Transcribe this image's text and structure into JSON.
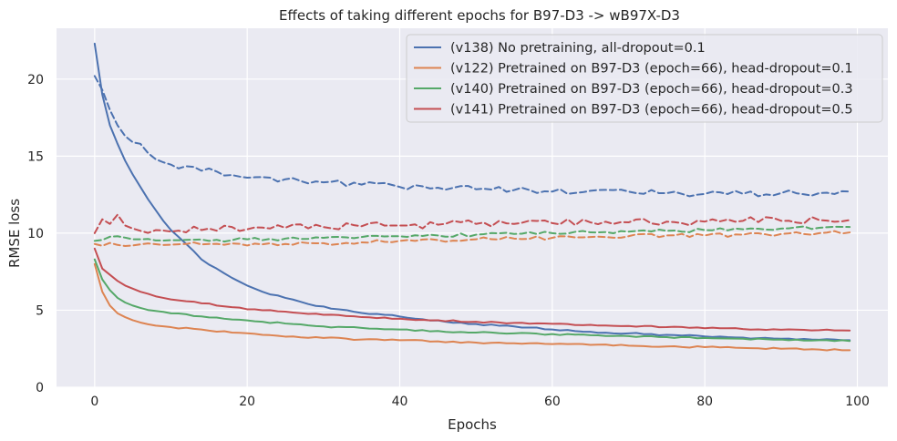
{
  "chart_data": {
    "type": "line",
    "title": "Effects of taking different epochs for B97-D3 -> wB97X-D3",
    "xlabel": "Epochs",
    "ylabel": "RMSE loss",
    "xlim": [
      -5,
      104
    ],
    "ylim": [
      0,
      23.3
    ],
    "xticks": [
      0,
      20,
      40,
      60,
      80,
      100
    ],
    "yticks": [
      0,
      5,
      10,
      15,
      20
    ],
    "grid": true,
    "legend_position": "top-right",
    "series": [
      {
        "name": "(v138) No pretraining, all-dropout=0.1",
        "color": "#4c72b0",
        "train_anchors": [
          [
            0,
            22.3
          ],
          [
            1,
            19
          ],
          [
            2,
            17
          ],
          [
            3,
            15.8
          ],
          [
            4,
            14.7
          ],
          [
            5,
            13.8
          ],
          [
            6,
            13
          ],
          [
            7,
            12.2
          ],
          [
            8,
            11.5
          ],
          [
            9,
            10.8
          ],
          [
            10,
            10.2
          ],
          [
            12,
            9.3
          ],
          [
            14,
            8.3
          ],
          [
            16,
            7.7
          ],
          [
            18,
            7.1
          ],
          [
            20,
            6.6
          ],
          [
            22,
            6.2
          ],
          [
            25,
            5.8
          ],
          [
            28,
            5.4
          ],
          [
            31,
            5.1
          ],
          [
            34,
            4.9
          ],
          [
            38,
            4.7
          ],
          [
            42,
            4.45
          ],
          [
            46,
            4.25
          ],
          [
            50,
            4.1
          ],
          [
            55,
            3.95
          ],
          [
            60,
            3.75
          ],
          [
            65,
            3.6
          ],
          [
            70,
            3.5
          ],
          [
            75,
            3.4
          ],
          [
            80,
            3.3
          ],
          [
            85,
            3.22
          ],
          [
            90,
            3.15
          ],
          [
            95,
            3.08
          ],
          [
            99,
            3.05
          ]
        ],
        "train_noise": 0.05,
        "val_anchors": [
          [
            0,
            20.2
          ],
          [
            1,
            19.3
          ],
          [
            2,
            18
          ],
          [
            3,
            17
          ],
          [
            4,
            16.3
          ],
          [
            5,
            15.9
          ],
          [
            6,
            15.8
          ],
          [
            7,
            15.2
          ],
          [
            8,
            14.8
          ],
          [
            9,
            14.6
          ],
          [
            10,
            14.45
          ],
          [
            13,
            14.3
          ],
          [
            16,
            14
          ],
          [
            20,
            13.6
          ],
          [
            25,
            13.5
          ],
          [
            30,
            13.3
          ],
          [
            35,
            13.15
          ],
          [
            40,
            13
          ],
          [
            45,
            12.95
          ],
          [
            50,
            12.85
          ],
          [
            55,
            12.8
          ],
          [
            60,
            12.7
          ],
          [
            65,
            12.75
          ],
          [
            70,
            12.7
          ],
          [
            75,
            12.6
          ],
          [
            80,
            12.55
          ],
          [
            85,
            12.55
          ],
          [
            90,
            12.6
          ],
          [
            95,
            12.6
          ],
          [
            99,
            12.7
          ]
        ],
        "val_noise": 0.2
      },
      {
        "name": "(v122) Pretrained on B97-D3 (epoch=66), head-dropout=0.1",
        "color": "#dd8452",
        "train_anchors": [
          [
            0,
            8
          ],
          [
            1,
            6.2
          ],
          [
            2,
            5.3
          ],
          [
            3,
            4.8
          ],
          [
            4,
            4.55
          ],
          [
            5,
            4.35
          ],
          [
            6,
            4.2
          ],
          [
            8,
            4
          ],
          [
            10,
            3.9
          ],
          [
            14,
            3.75
          ],
          [
            18,
            3.55
          ],
          [
            22,
            3.4
          ],
          [
            26,
            3.3
          ],
          [
            30,
            3.2
          ],
          [
            35,
            3.1
          ],
          [
            40,
            3.05
          ],
          [
            45,
            2.98
          ],
          [
            50,
            2.9
          ],
          [
            55,
            2.85
          ],
          [
            60,
            2.8
          ],
          [
            65,
            2.75
          ],
          [
            70,
            2.7
          ],
          [
            75,
            2.65
          ],
          [
            80,
            2.6
          ],
          [
            85,
            2.55
          ],
          [
            90,
            2.5
          ],
          [
            95,
            2.45
          ],
          [
            99,
            2.4
          ]
        ],
        "train_noise": 0.05,
        "val_anchors": [
          [
            0,
            9.3
          ],
          [
            5,
            9.2
          ],
          [
            10,
            9.25
          ],
          [
            15,
            9.3
          ],
          [
            20,
            9.2
          ],
          [
            25,
            9.3
          ],
          [
            30,
            9.35
          ],
          [
            35,
            9.4
          ],
          [
            40,
            9.5
          ],
          [
            45,
            9.55
          ],
          [
            50,
            9.6
          ],
          [
            55,
            9.65
          ],
          [
            60,
            9.7
          ],
          [
            65,
            9.75
          ],
          [
            70,
            9.8
          ],
          [
            75,
            9.85
          ],
          [
            80,
            9.85
          ],
          [
            85,
            9.9
          ],
          [
            90,
            9.95
          ],
          [
            95,
            10
          ],
          [
            99,
            10.05
          ]
        ],
        "val_noise": 0.12
      },
      {
        "name": "(v140) Pretrained on B97-D3 (epoch=66), head-dropout=0.3",
        "color": "#55a868",
        "train_anchors": [
          [
            0,
            8.3
          ],
          [
            1,
            7
          ],
          [
            2,
            6.3
          ],
          [
            3,
            5.8
          ],
          [
            4,
            5.5
          ],
          [
            5,
            5.3
          ],
          [
            6,
            5.15
          ],
          [
            8,
            4.95
          ],
          [
            10,
            4.8
          ],
          [
            14,
            4.6
          ],
          [
            18,
            4.4
          ],
          [
            22,
            4.25
          ],
          [
            26,
            4.1
          ],
          [
            30,
            3.95
          ],
          [
            35,
            3.85
          ],
          [
            40,
            3.75
          ],
          [
            45,
            3.65
          ],
          [
            50,
            3.55
          ],
          [
            55,
            3.5
          ],
          [
            60,
            3.45
          ],
          [
            65,
            3.38
          ],
          [
            70,
            3.32
          ],
          [
            75,
            3.25
          ],
          [
            80,
            3.2
          ],
          [
            85,
            3.15
          ],
          [
            90,
            3.1
          ],
          [
            95,
            3.05
          ],
          [
            99,
            3
          ]
        ],
        "train_noise": 0.05,
        "val_anchors": [
          [
            0,
            9.5
          ],
          [
            3,
            9.8
          ],
          [
            5,
            9.6
          ],
          [
            10,
            9.55
          ],
          [
            15,
            9.5
          ],
          [
            20,
            9.6
          ],
          [
            25,
            9.65
          ],
          [
            30,
            9.7
          ],
          [
            35,
            9.75
          ],
          [
            40,
            9.8
          ],
          [
            45,
            9.85
          ],
          [
            50,
            9.9
          ],
          [
            55,
            9.95
          ],
          [
            60,
            10
          ],
          [
            65,
            10.05
          ],
          [
            70,
            10.1
          ],
          [
            75,
            10.15
          ],
          [
            80,
            10.2
          ],
          [
            85,
            10.25
          ],
          [
            90,
            10.3
          ],
          [
            95,
            10.35
          ],
          [
            99,
            10.4
          ]
        ],
        "val_noise": 0.12
      },
      {
        "name": "(v141) Pretrained on B97-D3 (epoch=66), head-dropout=0.5",
        "color": "#c44e52",
        "train_anchors": [
          [
            0,
            9
          ],
          [
            1,
            7.7
          ],
          [
            2,
            7.3
          ],
          [
            3,
            6.9
          ],
          [
            4,
            6.6
          ],
          [
            5,
            6.4
          ],
          [
            6,
            6.2
          ],
          [
            8,
            5.9
          ],
          [
            10,
            5.7
          ],
          [
            14,
            5.45
          ],
          [
            18,
            5.2
          ],
          [
            22,
            5
          ],
          [
            26,
            4.85
          ],
          [
            30,
            4.7
          ],
          [
            35,
            4.55
          ],
          [
            40,
            4.45
          ],
          [
            45,
            4.35
          ],
          [
            50,
            4.25
          ],
          [
            55,
            4.18
          ],
          [
            60,
            4.12
          ],
          [
            65,
            4.05
          ],
          [
            70,
            3.98
          ],
          [
            75,
            3.9
          ],
          [
            80,
            3.83
          ],
          [
            85,
            3.78
          ],
          [
            90,
            3.73
          ],
          [
            95,
            3.7
          ],
          [
            99,
            3.68
          ]
        ],
        "train_noise": 0.05,
        "val_anchors": [
          [
            0,
            10
          ],
          [
            1,
            10.9
          ],
          [
            2,
            10.6
          ],
          [
            3,
            11.2
          ],
          [
            4,
            10.5
          ],
          [
            5,
            10.3
          ],
          [
            8,
            10.2
          ],
          [
            10,
            10.1
          ],
          [
            15,
            10.3
          ],
          [
            20,
            10.25
          ],
          [
            25,
            10.35
          ],
          [
            30,
            10.4
          ],
          [
            35,
            10.45
          ],
          [
            40,
            10.5
          ],
          [
            45,
            10.55
          ],
          [
            50,
            10.6
          ],
          [
            55,
            10.6
          ],
          [
            60,
            10.65
          ],
          [
            65,
            10.7
          ],
          [
            70,
            10.7
          ],
          [
            75,
            10.75
          ],
          [
            80,
            10.75
          ],
          [
            85,
            10.8
          ],
          [
            90,
            10.8
          ],
          [
            95,
            10.85
          ],
          [
            99,
            10.85
          ]
        ],
        "val_noise": 0.25
      }
    ]
  }
}
